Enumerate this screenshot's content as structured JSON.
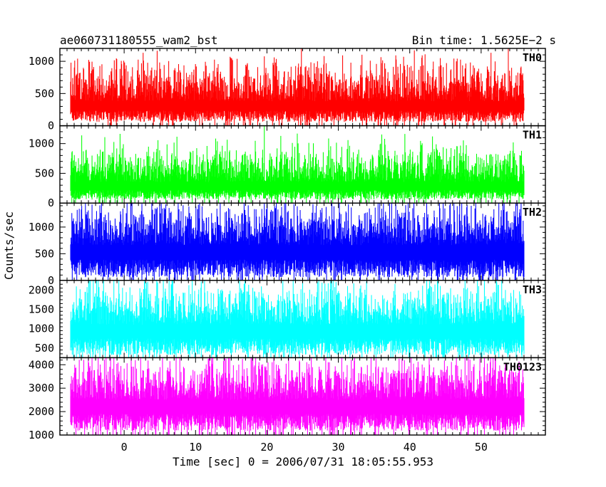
{
  "header": {
    "title": "ae060731180555_wam2_bst",
    "bin_time": "Bin time: 1.5625E−2 s"
  },
  "chart_data": {
    "type": "line",
    "xlabel": "Time [sec] 0 = 2006/07/31 18:05:55.953",
    "ylabel": "Counts/sec",
    "xlim": [
      -9,
      59
    ],
    "x_ticks": [
      0,
      10,
      20,
      30,
      40,
      50
    ],
    "x_data_range": [
      -7.5,
      56
    ],
    "series": [
      {
        "name": "TH0",
        "color": "#ff0000",
        "ylim": [
          0,
          1200
        ],
        "y_ticks": [
          0,
          500,
          1000
        ],
        "baseline": 60,
        "mean": 380,
        "spread": 300,
        "peak": 1200
      },
      {
        "name": "TH1",
        "color": "#00ff00",
        "ylim": [
          0,
          1300
        ],
        "y_ticks": [
          0,
          500,
          1000
        ],
        "baseline": 60,
        "mean": 350,
        "spread": 280,
        "peak": 1300
      },
      {
        "name": "TH2",
        "color": "#0000ff",
        "ylim": [
          0,
          1450
        ],
        "y_ticks": [
          0,
          500,
          1000
        ],
        "baseline": 60,
        "mean": 660,
        "spread": 380,
        "peak": 1450
      },
      {
        "name": "TH3",
        "color": "#00ffff",
        "ylim": [
          250,
          2250
        ],
        "y_ticks": [
          500,
          1000,
          1500,
          2000
        ],
        "baseline": 320,
        "mean": 1100,
        "spread": 520,
        "peak": 2250
      },
      {
        "name": "TH0123",
        "color": "#ff00ff",
        "ylim": [
          1000,
          4300
        ],
        "y_ticks": [
          1000,
          2000,
          3000,
          4000
        ],
        "baseline": 1180,
        "mean": 2500,
        "spread": 850,
        "peak": 4300
      }
    ]
  }
}
